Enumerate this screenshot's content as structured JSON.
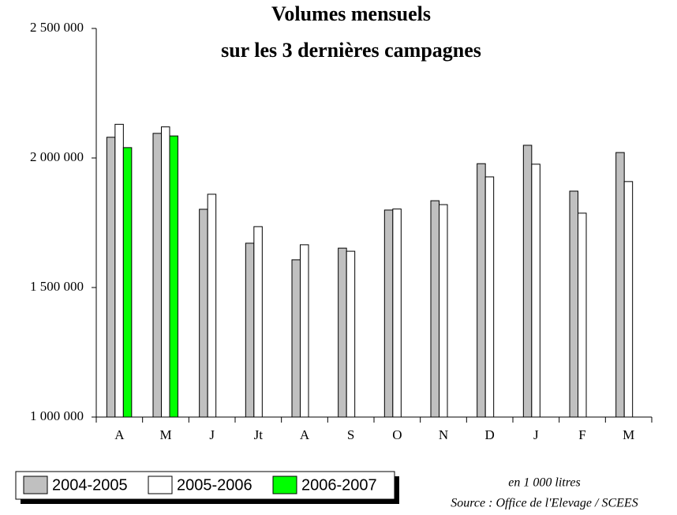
{
  "chart_data": {
    "type": "bar",
    "title": "Volumes mensuels",
    "subtitle": "sur les 3 dernières campagnes",
    "categories": [
      "A",
      "M",
      "J",
      "Jt",
      "A",
      "S",
      "O",
      "N",
      "D",
      "J",
      "F",
      "M"
    ],
    "series": [
      {
        "name": "2004-2005",
        "color": "#c0c0c0",
        "values": [
          2080000,
          2095000,
          1802000,
          1671000,
          1607000,
          1652000,
          1799000,
          1835000,
          1978000,
          2049000,
          1872000,
          2021000
        ]
      },
      {
        "name": "2005-2006",
        "color": "#ffffff",
        "values": [
          2130000,
          2120000,
          1860000,
          1735000,
          1665000,
          1640000,
          1803000,
          1820000,
          1927000,
          1976000,
          1787000,
          1909000
        ]
      },
      {
        "name": "2006-2007",
        "color": "#00ff00",
        "values": [
          2040000,
          2085000,
          null,
          null,
          null,
          null,
          null,
          null,
          null,
          null,
          null,
          null
        ]
      }
    ],
    "ylim": [
      1000000,
      2500000
    ],
    "yticks": [
      {
        "value": 1000000,
        "label": "1 000 000"
      },
      {
        "value": 1500000,
        "label": "1 500 000"
      },
      {
        "value": 2000000,
        "label": "2 000 000"
      },
      {
        "value": 2500000,
        "label": "2 500 000"
      }
    ],
    "annotations": [
      "en 1 000 litres",
      "Source : Office de l'Elevage / SCEES"
    ]
  }
}
